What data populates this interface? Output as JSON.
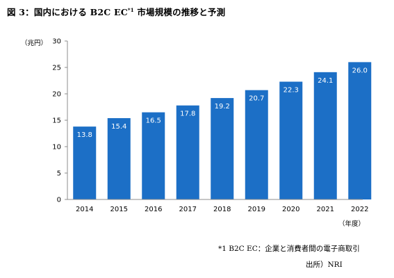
{
  "title": {
    "prefix": "図 3：国内における B2C EC",
    "sup": "*1",
    "suffix": " 市場規模の推移と予測"
  },
  "chart_data": {
    "type": "bar",
    "categories": [
      "2014",
      "2015",
      "2016",
      "2017",
      "2018",
      "2019",
      "2020",
      "2021",
      "2022"
    ],
    "values": [
      13.8,
      15.4,
      16.5,
      17.8,
      19.2,
      20.7,
      22.3,
      24.1,
      26.0
    ],
    "value_labels": [
      "13.8",
      "15.4",
      "16.5",
      "17.8",
      "19.2",
      "20.7",
      "22.3",
      "24.1",
      "26.0"
    ],
    "ylabel": "（兆円）",
    "xlabel": "（年度）",
    "ylim": [
      0,
      30
    ],
    "yticks": [
      0,
      5,
      10,
      15,
      20,
      25,
      30
    ],
    "grid": false,
    "bar_color": "#1c6fc6",
    "label_color": "#ffffff"
  },
  "footnotes": {
    "line1": "*1 B2C EC：企業と消費者間の電子商取引",
    "line2": "出所）NRI"
  }
}
